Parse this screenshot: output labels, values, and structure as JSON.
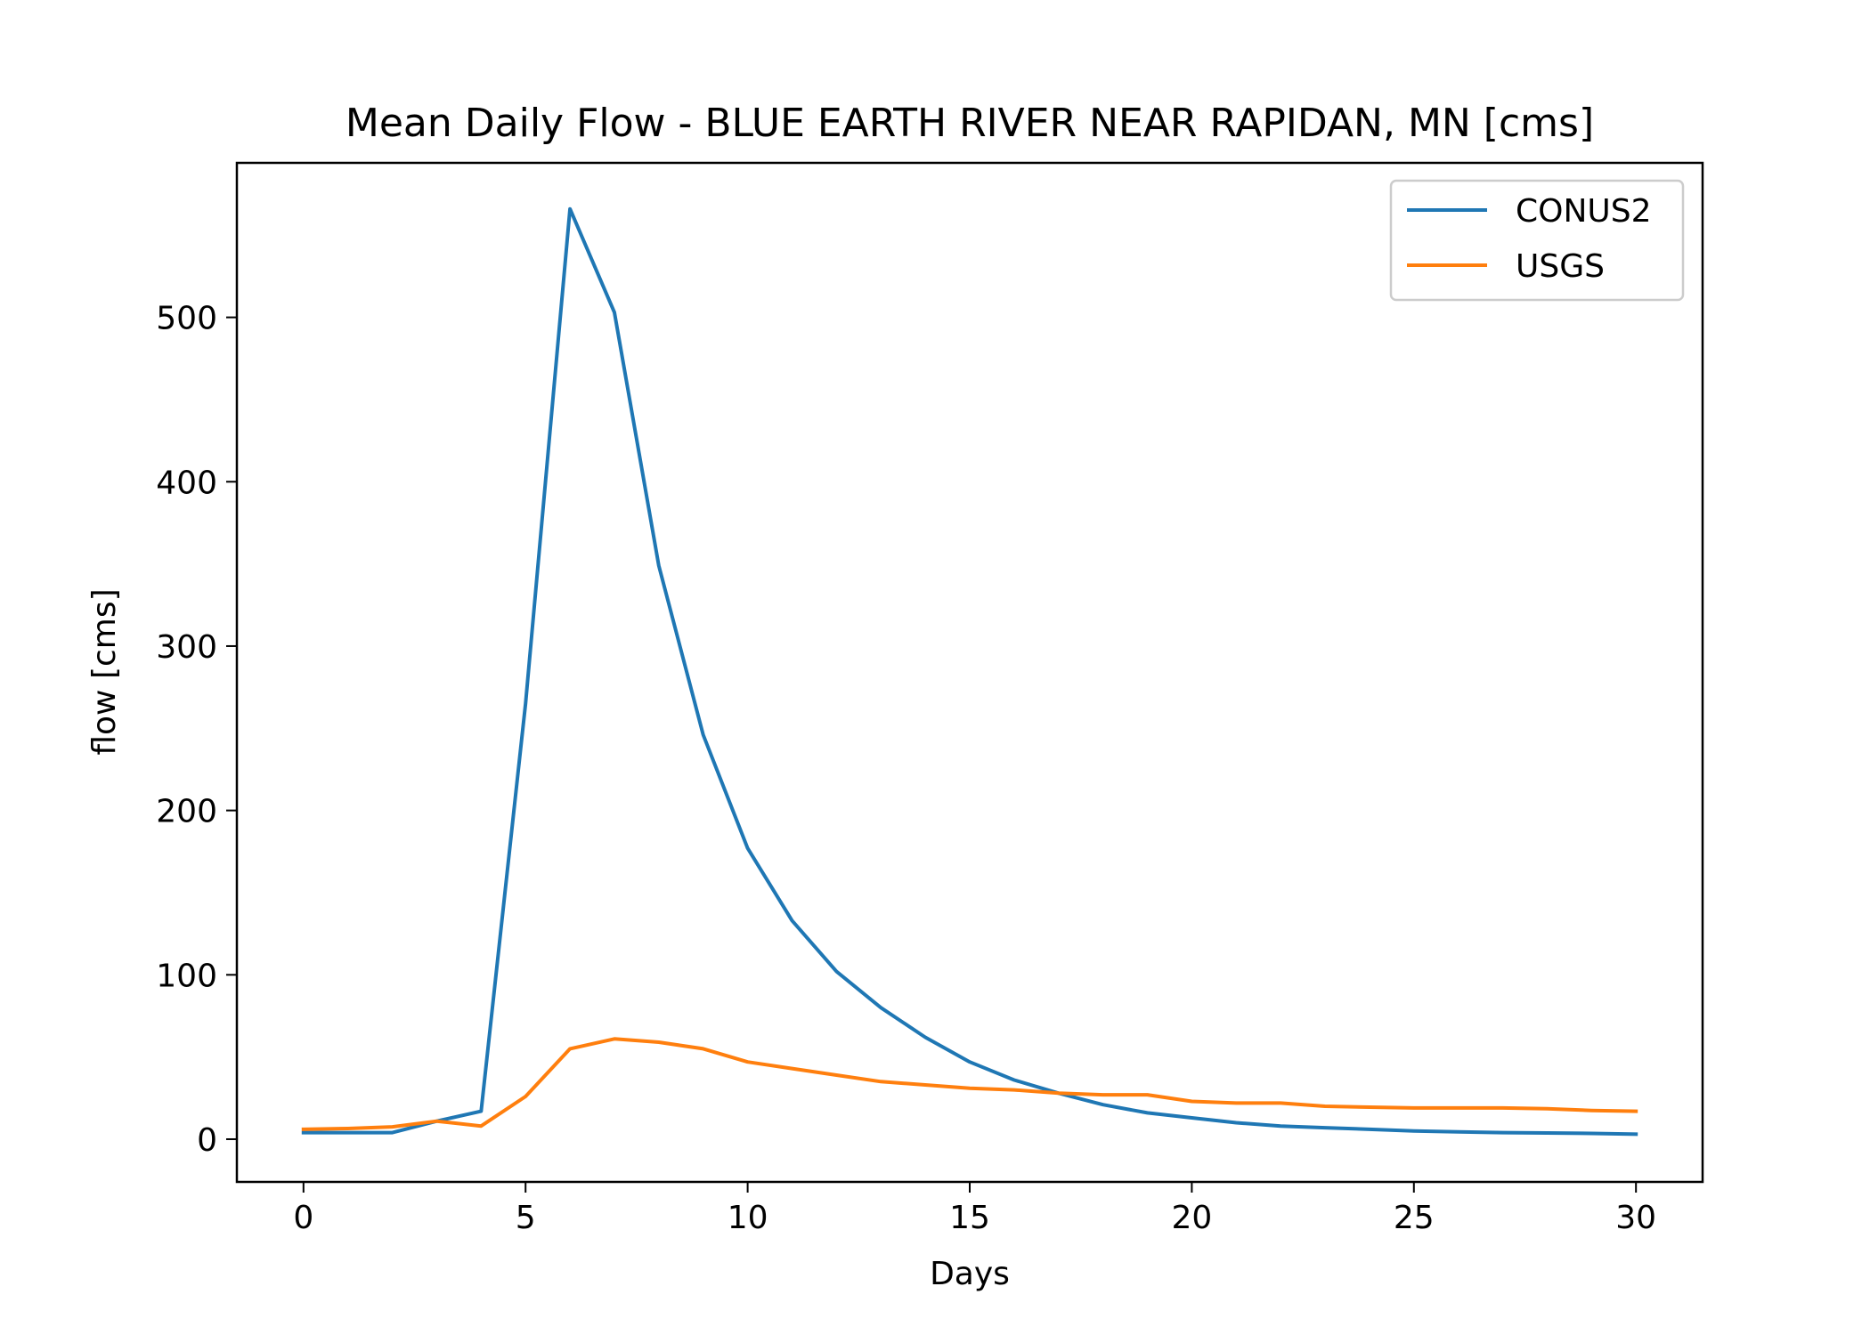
{
  "chart_data": {
    "type": "line",
    "title": "Mean Daily Flow - BLUE EARTH RIVER NEAR RAPIDAN, MN [cms]",
    "xlabel": "Days",
    "ylabel": "flow [cms]",
    "xlim": [
      -1.5,
      31.5
    ],
    "ylim": [
      -26,
      594
    ],
    "xticks": [
      0,
      5,
      10,
      15,
      20,
      25,
      30
    ],
    "yticks": [
      0,
      100,
      200,
      300,
      400,
      500
    ],
    "grid": false,
    "legend_position": "top-right",
    "x": [
      0,
      1,
      2,
      3,
      4,
      5,
      6,
      7,
      8,
      9,
      10,
      11,
      12,
      13,
      14,
      15,
      16,
      17,
      18,
      19,
      20,
      21,
      22,
      23,
      24,
      25,
      26,
      27,
      28,
      29,
      30
    ],
    "series": [
      {
        "name": "CONUS2",
        "color": "#1f77b4",
        "values": [
          4,
          4,
          4,
          11,
          17,
          265,
          566,
          503,
          349,
          246,
          177,
          133,
          102,
          80,
          62,
          47,
          36,
          28,
          21,
          16,
          13,
          10,
          8,
          7,
          6,
          5,
          4.5,
          4,
          3.8,
          3.5,
          3
        ]
      },
      {
        "name": "USGS",
        "color": "#ff7f0e",
        "values": [
          6,
          6.5,
          7.5,
          11,
          8,
          26,
          55,
          61,
          59,
          55,
          47,
          43,
          39,
          35,
          33,
          31,
          30,
          28,
          27,
          27,
          23,
          22,
          22,
          20,
          19.5,
          19,
          19,
          19,
          18.5,
          17.5,
          17
        ]
      }
    ]
  }
}
